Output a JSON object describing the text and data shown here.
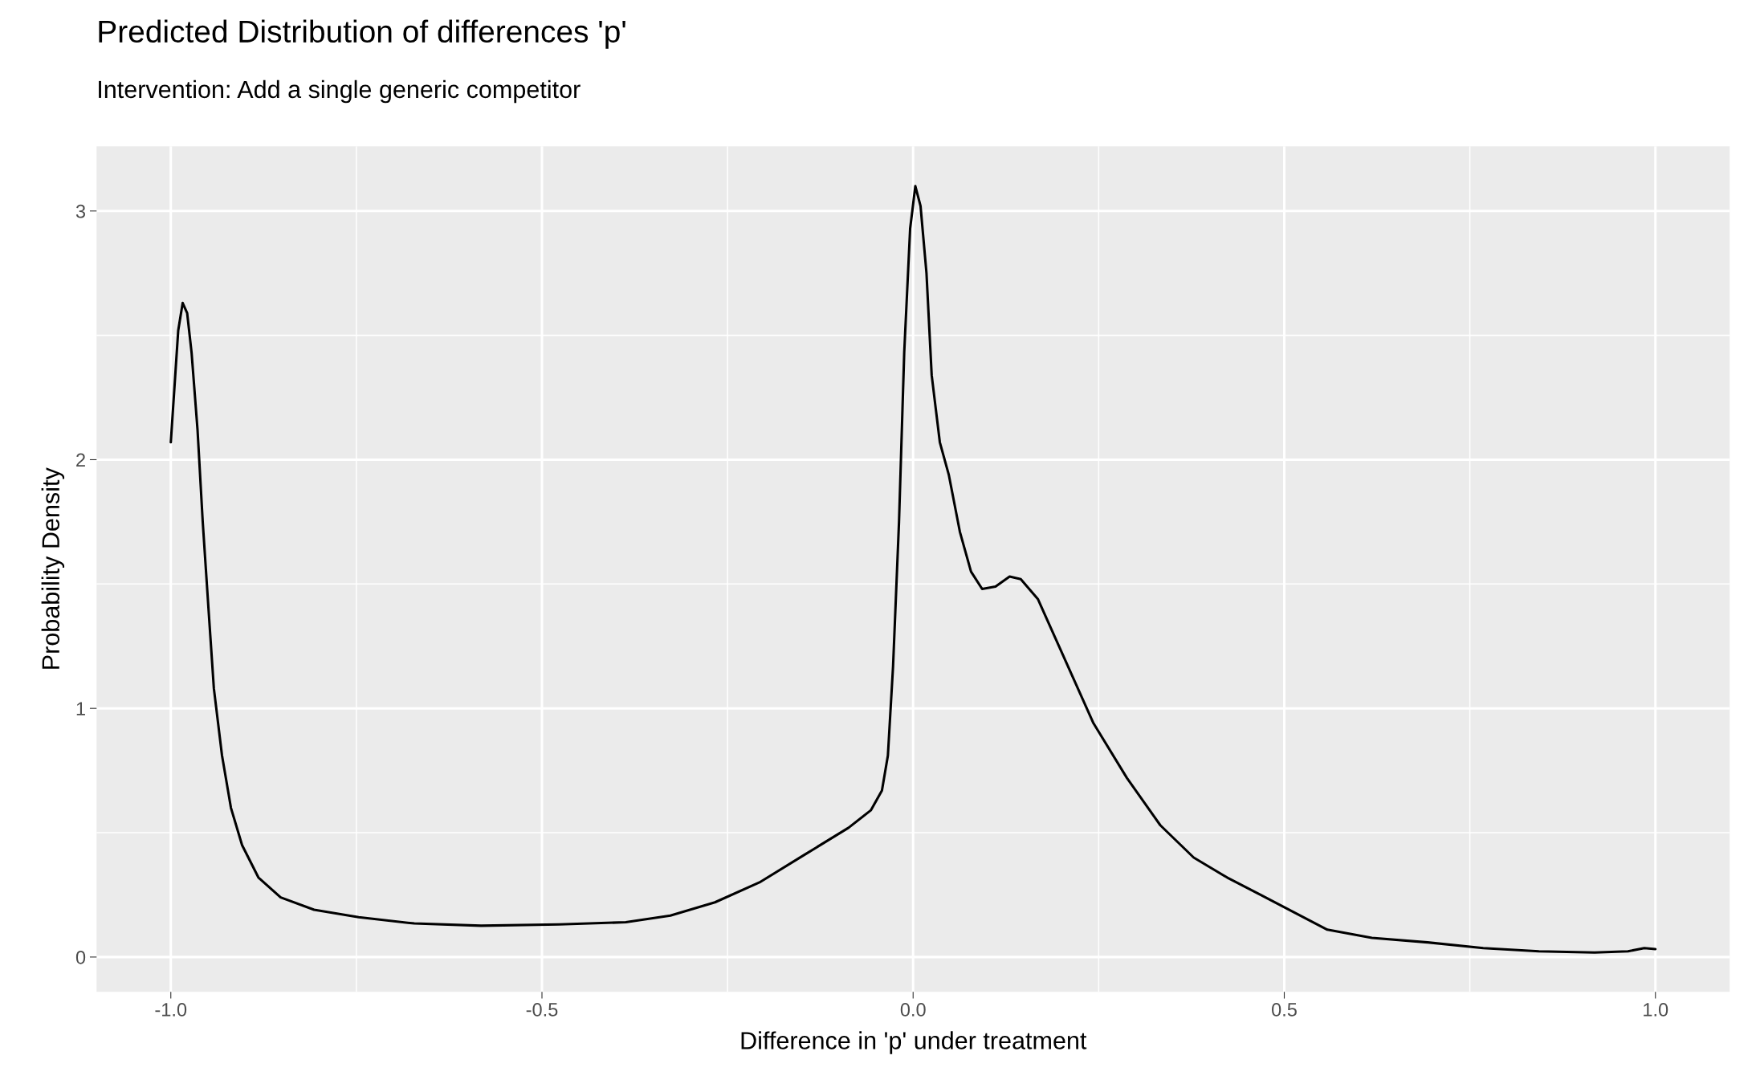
{
  "chart_data": {
    "type": "line",
    "title": "Predicted Distribution of differences 'p'",
    "subtitle": "Intervention: Add a single generic competitor",
    "xlabel": "Difference in 'p' under treatment",
    "ylabel": "Probability Density",
    "xlim": [
      -1.1,
      1.1
    ],
    "ylim": [
      -0.14,
      3.26
    ],
    "xticks": [
      {
        "value": -1.0,
        "label": "-1.0"
      },
      {
        "value": -0.75,
        "label": null
      },
      {
        "value": -0.5,
        "label": "-0.5"
      },
      {
        "value": -0.25,
        "label": null
      },
      {
        "value": 0.0,
        "label": "0.0"
      },
      {
        "value": 0.25,
        "label": null
      },
      {
        "value": 0.5,
        "label": "0.5"
      },
      {
        "value": 0.75,
        "label": null
      },
      {
        "value": 1.0,
        "label": "1.0"
      }
    ],
    "yticks": [
      0,
      {
        "value": 0.5,
        "label": null
      },
      1,
      {
        "value": 1.5,
        "label": null
      },
      2,
      {
        "value": 2.5,
        "label": null
      },
      3
    ],
    "grid": true,
    "legend": false,
    "marker": "none",
    "line_style": "solid",
    "series": [
      {
        "color": "#000000",
        "x": [
          -1.0,
          -0.994,
          -0.99,
          -0.984,
          -0.978,
          -0.972,
          -0.964,
          -0.957,
          -0.949,
          -0.942,
          -0.931,
          -0.919,
          -0.904,
          -0.882,
          -0.852,
          -0.807,
          -0.747,
          -0.672,
          -0.582,
          -0.477,
          -0.387,
          -0.327,
          -0.267,
          -0.207,
          -0.147,
          -0.087,
          -0.057,
          -0.042,
          -0.034,
          -0.027,
          -0.019,
          -0.012,
          -0.004,
          0.003,
          0.01,
          0.018,
          0.025,
          0.036,
          0.048,
          0.063,
          0.078,
          0.093,
          0.111,
          0.13,
          0.145,
          0.168,
          0.198,
          0.243,
          0.288,
          0.333,
          0.378,
          0.423,
          0.468,
          0.513,
          0.558,
          0.618,
          0.693,
          0.768,
          0.843,
          0.918,
          0.963,
          0.985,
          1.0
        ],
        "values": [
          2.07,
          2.34,
          2.52,
          2.63,
          2.59,
          2.43,
          2.12,
          1.75,
          1.39,
          1.08,
          0.81,
          0.6,
          0.45,
          0.32,
          0.24,
          0.19,
          0.16,
          0.135,
          0.126,
          0.131,
          0.14,
          0.167,
          0.22,
          0.3,
          0.41,
          0.52,
          0.59,
          0.67,
          0.81,
          1.17,
          1.75,
          2.43,
          2.93,
          3.1,
          3.02,
          2.75,
          2.34,
          2.07,
          1.94,
          1.71,
          1.55,
          1.48,
          1.49,
          1.53,
          1.52,
          1.44,
          1.24,
          0.94,
          0.72,
          0.53,
          0.4,
          0.32,
          0.25,
          0.18,
          0.11,
          0.077,
          0.059,
          0.036,
          0.023,
          0.018,
          0.023,
          0.036,
          0.032
        ]
      }
    ]
  }
}
